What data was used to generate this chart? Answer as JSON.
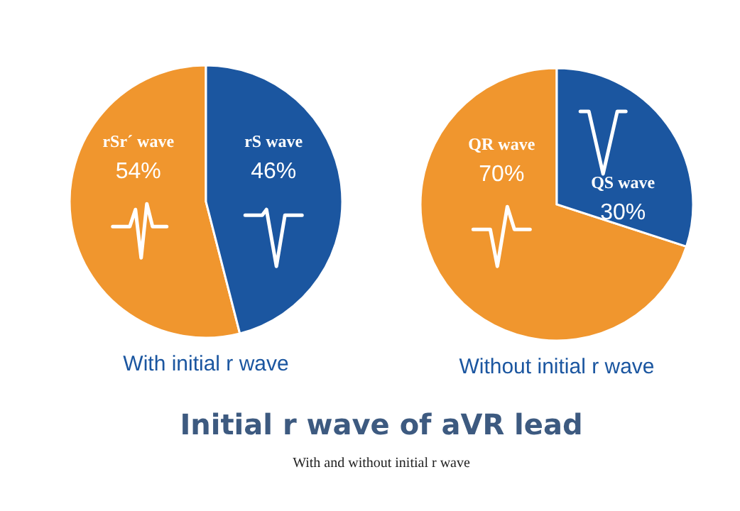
{
  "chart_data": [
    {
      "type": "pie",
      "title": "With initial r wave",
      "categories": [
        "rSr´ wave",
        "rS wave"
      ],
      "values": [
        54,
        46
      ],
      "value_labels": [
        "54%",
        "46%"
      ],
      "colors": [
        "#f0962e",
        "#1b56a0"
      ]
    },
    {
      "type": "pie",
      "title": "Without initial r wave",
      "categories": [
        "QR wave",
        "QS wave"
      ],
      "values": [
        70,
        30
      ],
      "value_labels": [
        "70%",
        "30%"
      ],
      "colors": [
        "#f0962e",
        "#1b56a0"
      ]
    },
    {
      "type": "other",
      "title": "Initial r wave of aVR lead",
      "subtitle": "With and without initial r wave"
    }
  ]
}
